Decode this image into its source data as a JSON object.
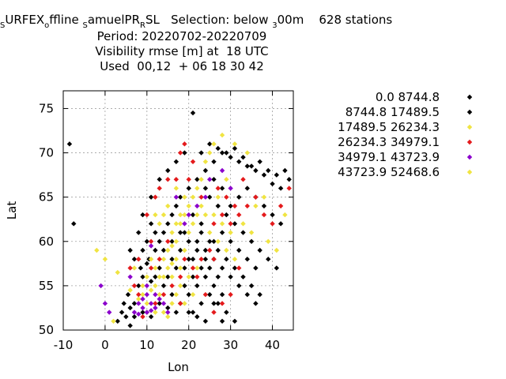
{
  "title": {
    "line1": [
      {
        "text": "S",
        "sub": true
      },
      {
        "text": "URFEX",
        "sub": false
      },
      {
        "text": "o",
        "sub": true
      },
      {
        "text": "ffline ",
        "sub": false
      },
      {
        "text": "S",
        "sub": true
      },
      {
        "text": "amuelPR",
        "sub": false
      },
      {
        "text": "R",
        "sub": true
      },
      {
        "text": "SL   Selection: below ",
        "sub": false
      },
      {
        "text": "3",
        "sub": true
      },
      {
        "text": "00m    628 stations",
        "sub": false
      }
    ],
    "line2": "Period: 20220702-20220709",
    "line3": "Visibility rmse [m] at  18 UTC",
    "line4": "Used  00,12  + 06 18 30 42"
  },
  "chart_data": {
    "type": "scatter",
    "xlabel": "Lon",
    "ylabel": "Lat",
    "xlim": [
      -10,
      45
    ],
    "ylim": [
      50,
      77
    ],
    "xticks": [
      -10,
      0,
      10,
      20,
      30,
      40
    ],
    "yticks": [
      50,
      55,
      60,
      65,
      70,
      75
    ],
    "grid": true,
    "legend_position": "right",
    "colors": {
      "black": "#000000",
      "yellow": "#f0e442",
      "red": "#e41a1c",
      "purple": "#8b00cc"
    },
    "legend": [
      {
        "label": "0.0 8744.8",
        "color": "#000000"
      },
      {
        "label": "8744.8 17489.5",
        "color": "#000000"
      },
      {
        "label": "17489.5 26234.3",
        "color": "#f0e442"
      },
      {
        "label": "26234.3 34979.1",
        "color": "#e41a1c"
      },
      {
        "label": "34979.1 43723.9",
        "color": "#8b00cc"
      },
      {
        "label": "43723.9 52468.6",
        "color": "#f0e442"
      }
    ],
    "series": [
      {
        "color": "#000000",
        "points": [
          [
            21,
            74.5
          ],
          [
            -8.5,
            71
          ],
          [
            -7.5,
            62
          ],
          [
            4,
            52
          ],
          [
            5,
            51.5
          ],
          [
            3,
            51
          ],
          [
            4.5,
            53
          ],
          [
            6,
            52.5
          ],
          [
            7,
            53
          ],
          [
            5.5,
            54
          ],
          [
            8,
            55
          ],
          [
            9,
            56
          ],
          [
            8.5,
            57
          ],
          [
            10,
            57.5
          ],
          [
            11,
            55.5
          ],
          [
            12,
            56
          ],
          [
            10.5,
            58
          ],
          [
            12,
            59
          ],
          [
            13,
            60
          ],
          [
            14,
            61
          ],
          [
            15,
            62
          ],
          [
            16,
            63
          ],
          [
            17,
            64
          ],
          [
            18,
            65
          ],
          [
            20,
            66
          ],
          [
            22,
            67
          ],
          [
            24,
            68
          ],
          [
            26,
            69
          ],
          [
            28,
            70
          ],
          [
            30,
            69.5
          ],
          [
            32,
            69
          ],
          [
            34,
            68.5
          ],
          [
            36,
            68
          ],
          [
            38,
            67.5
          ],
          [
            40,
            66.5
          ],
          [
            42,
            66
          ],
          [
            44,
            67
          ],
          [
            25,
            65
          ],
          [
            27,
            64
          ],
          [
            29,
            63
          ],
          [
            31,
            62
          ],
          [
            33,
            61
          ],
          [
            35,
            60
          ],
          [
            37,
            59
          ],
          [
            39,
            58
          ],
          [
            41,
            57
          ],
          [
            23,
            62
          ],
          [
            21,
            63
          ],
          [
            19,
            61
          ],
          [
            22,
            60
          ],
          [
            24,
            59
          ],
          [
            26,
            58
          ],
          [
            28,
            57
          ],
          [
            30,
            56
          ],
          [
            32,
            55
          ],
          [
            34,
            54
          ],
          [
            36,
            53
          ],
          [
            24,
            56
          ],
          [
            22,
            55
          ],
          [
            20,
            54
          ],
          [
            26,
            55
          ],
          [
            28,
            54
          ],
          [
            25,
            57
          ],
          [
            27,
            56
          ],
          [
            23,
            57
          ],
          [
            21,
            56
          ],
          [
            19,
            55
          ],
          [
            25,
            54
          ],
          [
            27,
            53
          ],
          [
            29,
            52
          ],
          [
            23,
            53
          ],
          [
            21,
            52
          ],
          [
            18,
            53
          ],
          [
            16,
            54
          ],
          [
            14,
            55
          ],
          [
            24,
            58
          ],
          [
            26,
            60
          ],
          [
            28,
            61
          ],
          [
            30,
            60
          ],
          [
            32,
            59
          ],
          [
            34,
            58
          ],
          [
            36,
            57
          ],
          [
            27,
            59
          ],
          [
            25,
            60
          ],
          [
            23,
            61
          ],
          [
            29,
            58
          ],
          [
            31,
            57
          ],
          [
            33,
            56
          ],
          [
            35,
            55
          ],
          [
            37,
            54
          ],
          [
            30,
            64
          ],
          [
            32,
            65
          ],
          [
            34,
            66
          ],
          [
            36,
            65
          ],
          [
            38,
            64
          ],
          [
            40,
            63
          ],
          [
            42,
            62
          ],
          [
            28,
            66
          ],
          [
            26,
            67
          ],
          [
            24,
            66
          ],
          [
            16,
            58
          ],
          [
            18,
            59
          ],
          [
            20,
            58
          ],
          [
            17,
            57
          ],
          [
            15,
            56
          ],
          [
            13,
            57
          ],
          [
            19,
            57
          ],
          [
            21,
            58
          ],
          [
            22,
            59
          ],
          [
            20,
            60
          ],
          [
            18,
            61
          ],
          [
            16,
            60
          ],
          [
            14,
            59
          ],
          [
            12,
            61
          ],
          [
            11,
            62
          ],
          [
            10,
            60
          ],
          [
            9,
            59
          ],
          [
            7,
            58
          ],
          [
            6,
            59
          ],
          [
            8,
            61
          ],
          [
            9,
            63
          ],
          [
            11,
            65
          ],
          [
            13,
            67
          ],
          [
            15,
            68
          ],
          [
            17,
            69
          ],
          [
            19,
            70
          ],
          [
            23,
            70
          ],
          [
            25,
            71
          ],
          [
            27,
            70.5
          ],
          [
            29,
            70
          ],
          [
            31,
            70.5
          ],
          [
            33,
            69.5
          ],
          [
            35,
            68.5
          ],
          [
            37,
            69
          ],
          [
            39,
            68
          ],
          [
            41,
            67.5
          ],
          [
            43,
            68
          ],
          [
            26,
            53
          ],
          [
            28,
            51
          ],
          [
            31,
            51
          ],
          [
            24,
            51
          ],
          [
            22,
            51.5
          ],
          [
            20,
            52
          ],
          [
            17,
            52
          ],
          [
            15,
            52.5
          ],
          [
            13,
            53
          ],
          [
            11,
            51.5
          ],
          [
            9,
            52
          ],
          [
            7,
            51.5
          ],
          [
            6,
            50.5
          ]
        ]
      },
      {
        "color": "#f0e442",
        "points": [
          [
            -2,
            59
          ],
          [
            0,
            58
          ],
          [
            2,
            51
          ],
          [
            3,
            56.5
          ],
          [
            7,
            57
          ],
          [
            9,
            54
          ],
          [
            11,
            54.5
          ],
          [
            12,
            55
          ],
          [
            13,
            56
          ],
          [
            14,
            58
          ],
          [
            15,
            59
          ],
          [
            16,
            59.5
          ],
          [
            17,
            60
          ],
          [
            18,
            62
          ],
          [
            19,
            63
          ],
          [
            20,
            64
          ],
          [
            21,
            65
          ],
          [
            22,
            66
          ],
          [
            23,
            67
          ],
          [
            24,
            69
          ],
          [
            25,
            70
          ],
          [
            26,
            71
          ],
          [
            14,
            63
          ],
          [
            15,
            64
          ],
          [
            16,
            61
          ],
          [
            17,
            62
          ],
          [
            13,
            62
          ],
          [
            12,
            63
          ],
          [
            15,
            57
          ],
          [
            16,
            56
          ],
          [
            17,
            58
          ],
          [
            18,
            57
          ],
          [
            19,
            59
          ],
          [
            20,
            61
          ],
          [
            21,
            62
          ],
          [
            22,
            63
          ],
          [
            23,
            64
          ],
          [
            26,
            63
          ],
          [
            28,
            62
          ],
          [
            30,
            61
          ],
          [
            14,
            52
          ],
          [
            15,
            51.5
          ],
          [
            16,
            53
          ],
          [
            17,
            54
          ],
          [
            18,
            55
          ],
          [
            19,
            53
          ],
          [
            21,
            54
          ],
          [
            12,
            52
          ],
          [
            10,
            53
          ],
          [
            9,
            55
          ],
          [
            8,
            53.5
          ],
          [
            6,
            54.5
          ],
          [
            13,
            54
          ],
          [
            14,
            56
          ],
          [
            16,
            57.5
          ],
          [
            20,
            56
          ],
          [
            22,
            57
          ],
          [
            24,
            63
          ],
          [
            27,
            65
          ],
          [
            29,
            67
          ],
          [
            33,
            62
          ],
          [
            35,
            61
          ],
          [
            36,
            64
          ],
          [
            38,
            65
          ],
          [
            34,
            70
          ],
          [
            31,
            71
          ],
          [
            28,
            72
          ],
          [
            39,
            60
          ],
          [
            41,
            59
          ],
          [
            43,
            63
          ],
          [
            11,
            58
          ],
          [
            12,
            57
          ],
          [
            10,
            56
          ],
          [
            18,
            63
          ],
          [
            19,
            65
          ],
          [
            17,
            66
          ],
          [
            25,
            61
          ],
          [
            27,
            60
          ],
          [
            29,
            59
          ],
          [
            31,
            58
          ]
        ]
      },
      {
        "color": "#e41a1c",
        "points": [
          [
            19,
            71
          ],
          [
            18,
            70
          ],
          [
            21,
            69
          ],
          [
            17,
            67
          ],
          [
            12,
            65
          ],
          [
            13,
            66
          ],
          [
            15,
            67
          ],
          [
            26,
            62
          ],
          [
            28,
            63
          ],
          [
            30,
            62
          ],
          [
            32,
            63
          ],
          [
            34,
            64
          ],
          [
            36,
            65
          ],
          [
            38,
            63
          ],
          [
            40,
            62
          ],
          [
            42,
            64
          ],
          [
            44,
            66
          ],
          [
            26,
            58
          ],
          [
            25,
            59
          ],
          [
            23,
            58
          ],
          [
            21,
            57
          ],
          [
            19,
            58
          ],
          [
            18,
            56
          ],
          [
            16,
            55
          ],
          [
            14,
            54
          ],
          [
            12,
            53
          ],
          [
            10,
            52
          ],
          [
            9,
            51.5
          ],
          [
            8,
            54
          ],
          [
            7,
            55
          ],
          [
            11,
            57
          ],
          [
            13,
            58
          ],
          [
            15,
            60
          ],
          [
            22,
            56
          ],
          [
            24,
            54
          ],
          [
            26,
            52
          ],
          [
            28,
            53
          ],
          [
            30,
            54
          ],
          [
            32,
            57
          ],
          [
            27,
            66
          ],
          [
            29,
            65
          ],
          [
            31,
            64
          ],
          [
            33,
            67
          ],
          [
            23,
            65
          ],
          [
            20,
            67
          ],
          [
            10,
            63
          ],
          [
            8,
            58
          ],
          [
            6,
            57
          ],
          [
            11,
            60
          ],
          [
            18,
            53
          ]
        ]
      },
      {
        "color": "#8b00cc",
        "points": [
          [
            -1,
            55
          ],
          [
            0,
            53
          ],
          [
            1,
            52
          ],
          [
            9,
            52.5
          ],
          [
            10,
            52
          ],
          [
            11,
            53
          ],
          [
            12,
            52.5
          ],
          [
            13,
            53.5
          ],
          [
            8,
            53
          ],
          [
            7,
            52
          ],
          [
            10,
            54
          ],
          [
            9,
            53.5
          ],
          [
            11,
            52.2
          ],
          [
            12,
            54
          ],
          [
            14,
            53
          ],
          [
            15,
            52
          ],
          [
            8,
            51.8
          ],
          [
            10,
            55
          ],
          [
            6,
            56
          ],
          [
            11,
            59.5
          ],
          [
            20,
            63
          ],
          [
            25,
            67
          ],
          [
            28,
            68
          ],
          [
            30,
            66
          ],
          [
            22,
            64
          ],
          [
            24,
            65
          ],
          [
            19,
            62
          ],
          [
            17,
            65
          ]
        ]
      }
    ]
  }
}
